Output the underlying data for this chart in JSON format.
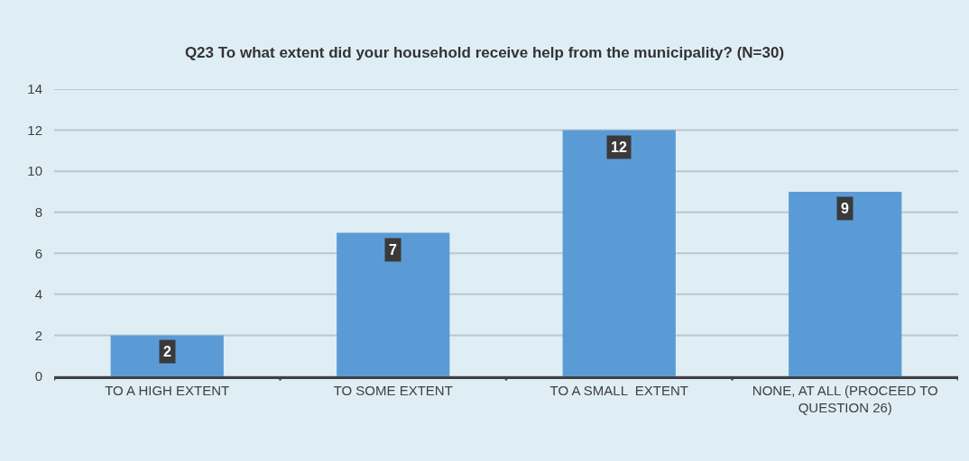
{
  "chart_data": {
    "type": "bar",
    "title": "Q23 To what extent did your household receive help from the municipality? (N=30)",
    "categories": [
      "TO A HIGH EXTENT",
      "TO SOME EXTENT",
      "TO A SMALL  EXTENT",
      "NONE, AT ALL (PROCEED TO QUESTION 26)"
    ],
    "values": [
      2,
      7,
      12,
      9
    ],
    "color": "#5b9bd5",
    "ylim": [
      0,
      14
    ],
    "yticks": [
      0,
      2,
      4,
      6,
      8,
      10,
      12,
      14
    ],
    "grid": "y",
    "data_labels": true
  }
}
